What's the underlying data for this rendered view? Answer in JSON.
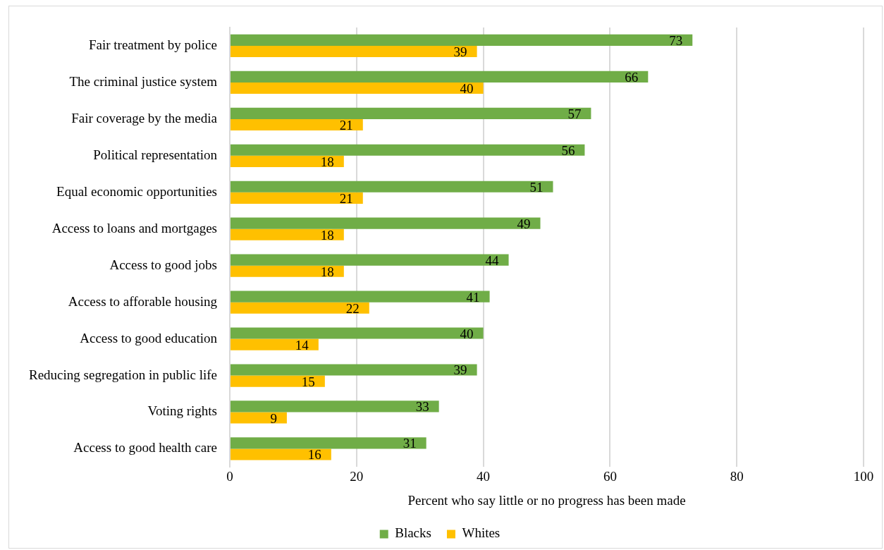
{
  "chart_data": {
    "type": "bar",
    "orientation": "horizontal",
    "xlabel": "Percent who say little or no progress has been made",
    "categories": [
      "Fair treatment by police",
      "The criminal justice system",
      "Fair coverage by the media",
      "Political representation",
      "Equal economic opportunities",
      "Access to loans and mortgages",
      "Access to good jobs",
      "Access to afforable housing",
      "Access to good education",
      "Reducing segregation in public life",
      "Voting rights",
      "Access to good health care"
    ],
    "series": [
      {
        "name": "Blacks",
        "color": "#70ad47",
        "values": [
          73,
          66,
          57,
          56,
          51,
          49,
          44,
          41,
          40,
          39,
          33,
          31
        ]
      },
      {
        "name": "Whites",
        "color": "#ffc000",
        "values": [
          39,
          40,
          21,
          18,
          21,
          18,
          18,
          22,
          14,
          15,
          9,
          16
        ]
      }
    ],
    "xlim": [
      0,
      100
    ],
    "xticks": [
      0,
      20,
      40,
      60,
      80,
      100
    ],
    "grid": "x",
    "legend": "bottom",
    "data_labels": true
  }
}
